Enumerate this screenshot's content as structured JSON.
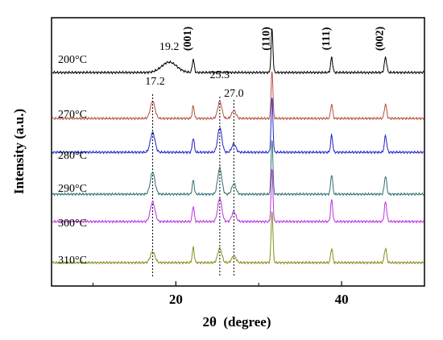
{
  "chart_data": {
    "type": "line",
    "xlabel": "2θ  (degree)",
    "ylabel": "Intensity (a.u.)",
    "xlim": [
      5,
      50
    ],
    "xticks": [
      20,
      40
    ],
    "xticks_minor": [
      10,
      30
    ],
    "yticks": "none",
    "grid": false,
    "legend": "none",
    "series": [
      {
        "name": "200°C",
        "color": "#000000",
        "baseline": 0,
        "peaks": [
          {
            "x": 19.2,
            "h": 0.38,
            "w": 0.9
          },
          {
            "x": 22.1,
            "h": 0.48,
            "w": 0.12
          },
          {
            "x": 31.6,
            "h": 1.6,
            "w": 0.11
          },
          {
            "x": 38.8,
            "h": 0.55,
            "w": 0.12
          },
          {
            "x": 45.3,
            "h": 0.55,
            "w": 0.14
          }
        ]
      },
      {
        "name": "270°C",
        "color": "#b5503c",
        "baseline": 0,
        "peaks": [
          {
            "x": 17.2,
            "h": 0.62,
            "w": 0.28
          },
          {
            "x": 22.1,
            "h": 0.45,
            "w": 0.12
          },
          {
            "x": 25.3,
            "h": 0.62,
            "w": 0.25
          },
          {
            "x": 27.0,
            "h": 0.3,
            "w": 0.25
          },
          {
            "x": 31.6,
            "h": 1.75,
            "w": 0.11
          },
          {
            "x": 38.8,
            "h": 0.52,
            "w": 0.12
          },
          {
            "x": 45.3,
            "h": 0.52,
            "w": 0.14
          }
        ]
      },
      {
        "name": "280°C",
        "color": "#2020cc",
        "baseline": 0,
        "peaks": [
          {
            "x": 17.2,
            "h": 0.72,
            "w": 0.28
          },
          {
            "x": 22.1,
            "h": 0.52,
            "w": 0.12
          },
          {
            "x": 25.3,
            "h": 0.9,
            "w": 0.25
          },
          {
            "x": 27.0,
            "h": 0.3,
            "w": 0.25
          },
          {
            "x": 31.6,
            "h": 2.0,
            "w": 0.11
          },
          {
            "x": 38.8,
            "h": 0.62,
            "w": 0.12
          },
          {
            "x": 45.3,
            "h": 0.6,
            "w": 0.14
          }
        ]
      },
      {
        "name": "290°C",
        "color": "#2e7070",
        "baseline": 0,
        "peaks": [
          {
            "x": 17.2,
            "h": 0.8,
            "w": 0.28
          },
          {
            "x": 22.1,
            "h": 0.5,
            "w": 0.12
          },
          {
            "x": 25.3,
            "h": 0.95,
            "w": 0.25
          },
          {
            "x": 27.0,
            "h": 0.38,
            "w": 0.25
          },
          {
            "x": 31.6,
            "h": 2.0,
            "w": 0.11
          },
          {
            "x": 38.8,
            "h": 0.72,
            "w": 0.12
          },
          {
            "x": 45.3,
            "h": 0.66,
            "w": 0.14
          }
        ]
      },
      {
        "name": "300°C",
        "color": "#bb33dd",
        "baseline": 0,
        "peaks": [
          {
            "x": 17.2,
            "h": 0.72,
            "w": 0.28
          },
          {
            "x": 22.1,
            "h": 0.55,
            "w": 0.12
          },
          {
            "x": 25.3,
            "h": 0.85,
            "w": 0.25
          },
          {
            "x": 27.0,
            "h": 0.36,
            "w": 0.25
          },
          {
            "x": 31.6,
            "h": 1.9,
            "w": 0.11
          },
          {
            "x": 38.8,
            "h": 0.8,
            "w": 0.12
          },
          {
            "x": 45.3,
            "h": 0.72,
            "w": 0.14
          }
        ]
      },
      {
        "name": "310°C",
        "color": "#8a8a1e",
        "baseline": 0,
        "peaks": [
          {
            "x": 17.2,
            "h": 0.4,
            "w": 0.28
          },
          {
            "x": 22.1,
            "h": 0.55,
            "w": 0.12
          },
          {
            "x": 25.3,
            "h": 0.52,
            "w": 0.25
          },
          {
            "x": 27.0,
            "h": 0.25,
            "w": 0.25
          },
          {
            "x": 31.6,
            "h": 1.9,
            "w": 0.11
          },
          {
            "x": 38.8,
            "h": 0.52,
            "w": 0.12
          },
          {
            "x": 45.3,
            "h": 0.52,
            "w": 0.14
          }
        ]
      }
    ],
    "reference_lines": [
      17.2,
      25.3,
      27.0
    ],
    "annotations": [
      {
        "text": "19.2",
        "x": 19.2,
        "rotated": false
      },
      {
        "text": "17.2",
        "x": 17.2,
        "rotated": false
      },
      {
        "text": "25.3",
        "x": 25.3,
        "rotated": false
      },
      {
        "text": "27.0",
        "x": 27.0,
        "rotated": false
      },
      {
        "text": "(001)",
        "x": 22.1,
        "rotated": true
      },
      {
        "text": "(110)",
        "x": 31.6,
        "rotated": true
      },
      {
        "text": "(111)",
        "x": 38.8,
        "rotated": true
      },
      {
        "text": "(002)",
        "x": 45.3,
        "rotated": true
      }
    ]
  }
}
